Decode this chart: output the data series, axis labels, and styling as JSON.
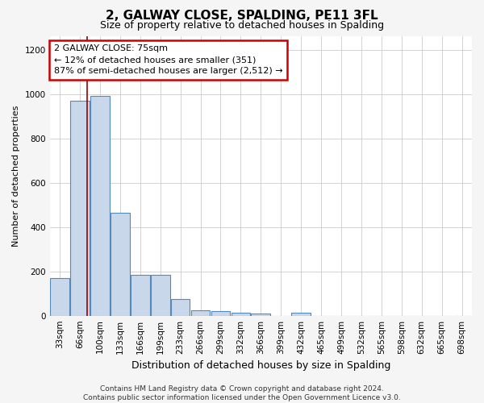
{
  "title": "2, GALWAY CLOSE, SPALDING, PE11 3FL",
  "subtitle": "Size of property relative to detached houses in Spalding",
  "xlabel": "Distribution of detached houses by size in Spalding",
  "ylabel": "Number of detached properties",
  "bins": [
    "33sqm",
    "66sqm",
    "100sqm",
    "133sqm",
    "166sqm",
    "199sqm",
    "233sqm",
    "266sqm",
    "299sqm",
    "332sqm",
    "366sqm",
    "399sqm",
    "432sqm",
    "465sqm",
    "499sqm",
    "532sqm",
    "565sqm",
    "598sqm",
    "632sqm",
    "665sqm",
    "698sqm"
  ],
  "values": [
    170,
    970,
    990,
    465,
    185,
    185,
    75,
    25,
    20,
    15,
    10,
    0,
    15,
    0,
    0,
    0,
    0,
    0,
    0,
    0,
    0
  ],
  "bar_color": "#c8d8ea",
  "bar_edge_color": "#5588bb",
  "red_line_x": 1.35,
  "annotation_text": "2 GALWAY CLOSE: 75sqm\n← 12% of detached houses are smaller (351)\n87% of semi-detached houses are larger (2,512) →",
  "annotation_box_color": "#ffffff",
  "annotation_box_edge": "#cc0000",
  "footer_text": "Contains HM Land Registry data © Crown copyright and database right 2024.\nContains public sector information licensed under the Open Government Licence v3.0.",
  "ylim": [
    0,
    1260
  ],
  "background_color": "#f5f5f5",
  "plot_bg_color": "#ffffff",
  "title_fontsize": 11,
  "subtitle_fontsize": 9,
  "ylabel_fontsize": 8,
  "xlabel_fontsize": 9,
  "tick_fontsize": 7.5,
  "footer_fontsize": 6.5,
  "annotation_fontsize": 8
}
